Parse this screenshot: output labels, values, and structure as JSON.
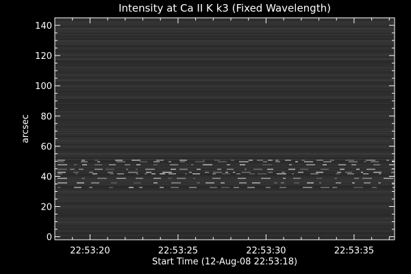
{
  "chart_data": {
    "type": "heatmap",
    "title": "Intensity at Ca II K k3 (Fixed Wavelength)",
    "xlabel": "Start Time (12-Aug-08 22:53:18)",
    "ylabel": "arcsec",
    "x_tick_labels": [
      "22:53:20",
      "22:53:25",
      "22:53:30",
      "22:53:35"
    ],
    "x_tick_seconds_after_start": [
      2,
      7,
      12,
      17
    ],
    "x_range_seconds_after_start": [
      0,
      19.3
    ],
    "ylim": [
      -2,
      145
    ],
    "y_ticks": [
      0,
      20,
      40,
      60,
      80,
      100,
      120,
      140
    ],
    "colormap": "grayscale",
    "background_color": "#000000",
    "foreground_color": "#ffffff",
    "bright_rows_arcsec": [
      33,
      36,
      39,
      42,
      43,
      45,
      48,
      50,
      51
    ],
    "faint_rows_arcsec": [
      10,
      20,
      24,
      30,
      55,
      64,
      70,
      92,
      100,
      104,
      118,
      130,
      138
    ]
  }
}
